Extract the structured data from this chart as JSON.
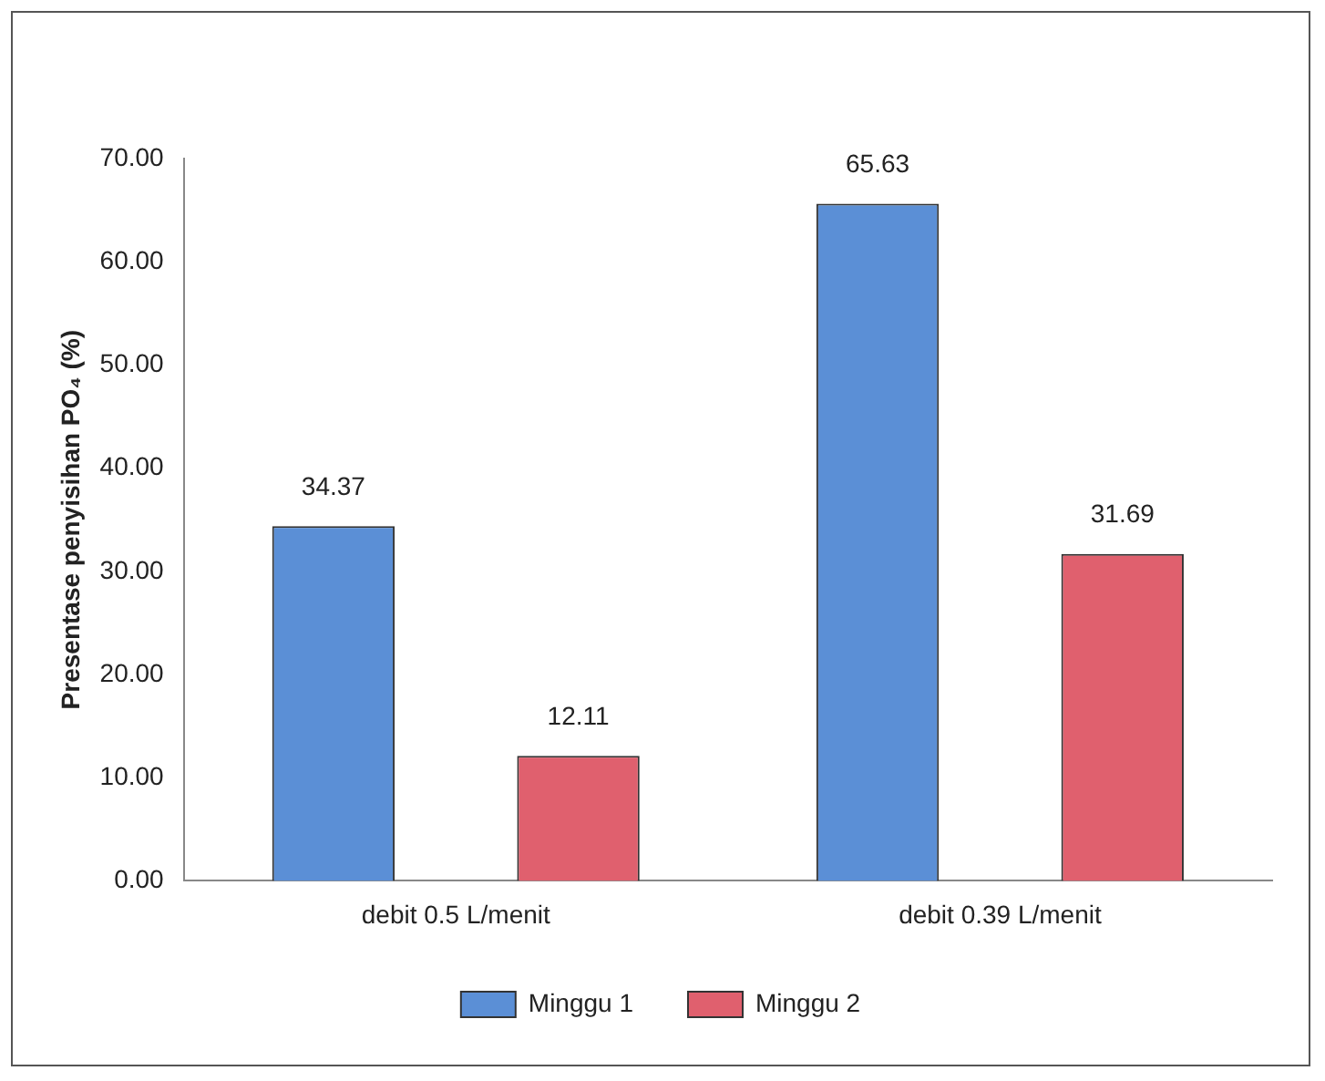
{
  "chart_data": {
    "type": "bar",
    "ylabel": "Presentase penyisihan PO₄ (%)",
    "categories": [
      "debit 0.5 L/menit",
      "debit 0.39 L/menit"
    ],
    "series": [
      {
        "name": "Minggu 1",
        "color": "#5b8fd6",
        "values": [
          34.37,
          65.63
        ]
      },
      {
        "name": "Minggu 2",
        "color": "#e0606e",
        "values": [
          12.11,
          31.69
        ]
      }
    ],
    "ylim": [
      0,
      70
    ],
    "yticks": [
      {
        "value": 0,
        "label": "0.00"
      },
      {
        "value": 10,
        "label": "10.00"
      },
      {
        "value": 20,
        "label": "20.00"
      },
      {
        "value": 30,
        "label": "30.00"
      },
      {
        "value": 40,
        "label": "40.00"
      },
      {
        "value": 50,
        "label": "50.00"
      },
      {
        "value": 60,
        "label": "60.00"
      },
      {
        "value": 70,
        "label": "70.00"
      }
    ],
    "grid": false,
    "legend": "bottom",
    "data_labels": true
  }
}
